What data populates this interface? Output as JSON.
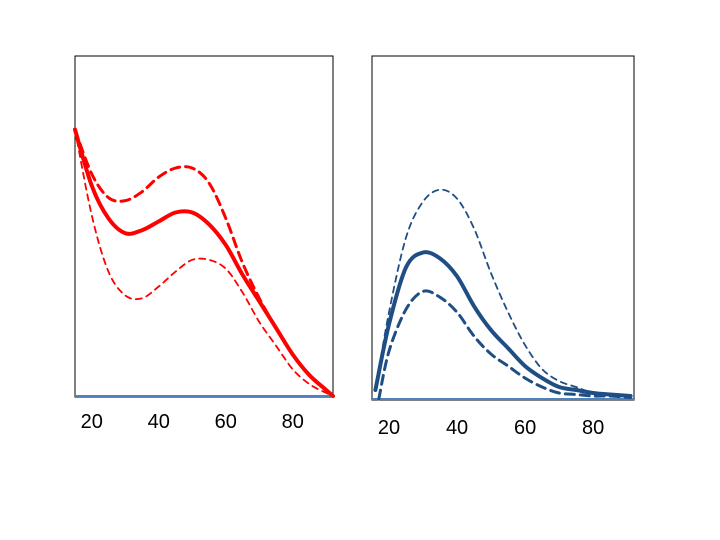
{
  "chart_data": [
    {
      "type": "line",
      "xlabel": "",
      "ylabel": "",
      "xlim": [
        15,
        92
      ],
      "ylim": [
        0,
        1
      ],
      "xticks": [
        "20",
        "40",
        "60",
        "80"
      ],
      "grid": false,
      "colors": {
        "lines": "#ff0000",
        "baseline": "#4f81bd",
        "frame": "#000000"
      },
      "series": [
        {
          "style": "solid-thick",
          "x": [
            15,
            20,
            25,
            30,
            35,
            40,
            45,
            50,
            55,
            60,
            65,
            70,
            75,
            80,
            85,
            90,
            92
          ],
          "y": [
            0.9,
            0.71,
            0.6,
            0.55,
            0.56,
            0.59,
            0.62,
            0.62,
            0.58,
            0.51,
            0.41,
            0.32,
            0.23,
            0.14,
            0.07,
            0.02,
            0.0
          ]
        },
        {
          "style": "dashed",
          "x": [
            15,
            20,
            25,
            30,
            35,
            40,
            45,
            50,
            55,
            60,
            65,
            70,
            75,
            80,
            85,
            90,
            92
          ],
          "y": [
            0.9,
            0.75,
            0.67,
            0.66,
            0.69,
            0.74,
            0.77,
            0.77,
            0.72,
            0.6,
            0.45,
            0.33,
            0.23,
            0.14,
            0.07,
            0.02,
            0.0
          ]
        },
        {
          "style": "dashed-thin",
          "x": [
            15,
            20,
            25,
            30,
            35,
            40,
            45,
            50,
            55,
            60,
            65,
            70,
            75,
            80,
            85,
            90,
            92
          ],
          "y": [
            0.9,
            0.61,
            0.42,
            0.34,
            0.33,
            0.37,
            0.42,
            0.46,
            0.46,
            0.43,
            0.35,
            0.25,
            0.17,
            0.09,
            0.04,
            0.01,
            0.0
          ]
        }
      ]
    },
    {
      "type": "line",
      "xlabel": "",
      "ylabel": "",
      "xlim": [
        15,
        92
      ],
      "ylim": [
        0,
        1
      ],
      "xticks": [
        "20",
        "40",
        "60",
        "80"
      ],
      "grid": false,
      "colors": {
        "lines": "#1f4e85",
        "baseline": "#4f81bd",
        "frame": "#000000"
      },
      "series": [
        {
          "style": "solid-thick",
          "x": [
            16,
            20,
            25,
            30,
            35,
            40,
            45,
            50,
            55,
            60,
            65,
            70,
            75,
            80,
            85,
            91
          ],
          "y": [
            0.03,
            0.25,
            0.44,
            0.49,
            0.47,
            0.41,
            0.31,
            0.23,
            0.17,
            0.11,
            0.07,
            0.04,
            0.03,
            0.02,
            0.015,
            0.01
          ]
        },
        {
          "style": "dashed-thin",
          "x": [
            16,
            20,
            25,
            30,
            35,
            40,
            45,
            50,
            55,
            60,
            65,
            70,
            75,
            80,
            85,
            91
          ],
          "y": [
            0.03,
            0.29,
            0.54,
            0.66,
            0.7,
            0.67,
            0.57,
            0.42,
            0.29,
            0.18,
            0.1,
            0.06,
            0.04,
            0.02,
            0.015,
            0.01
          ]
        },
        {
          "style": "dashed",
          "x": [
            17,
            20,
            25,
            30,
            35,
            40,
            45,
            50,
            55,
            60,
            65,
            70,
            75,
            80,
            85,
            91
          ],
          "y": [
            0.0,
            0.16,
            0.3,
            0.36,
            0.34,
            0.29,
            0.21,
            0.15,
            0.11,
            0.07,
            0.04,
            0.02,
            0.015,
            0.01,
            0.01,
            0.005
          ]
        }
      ]
    }
  ]
}
